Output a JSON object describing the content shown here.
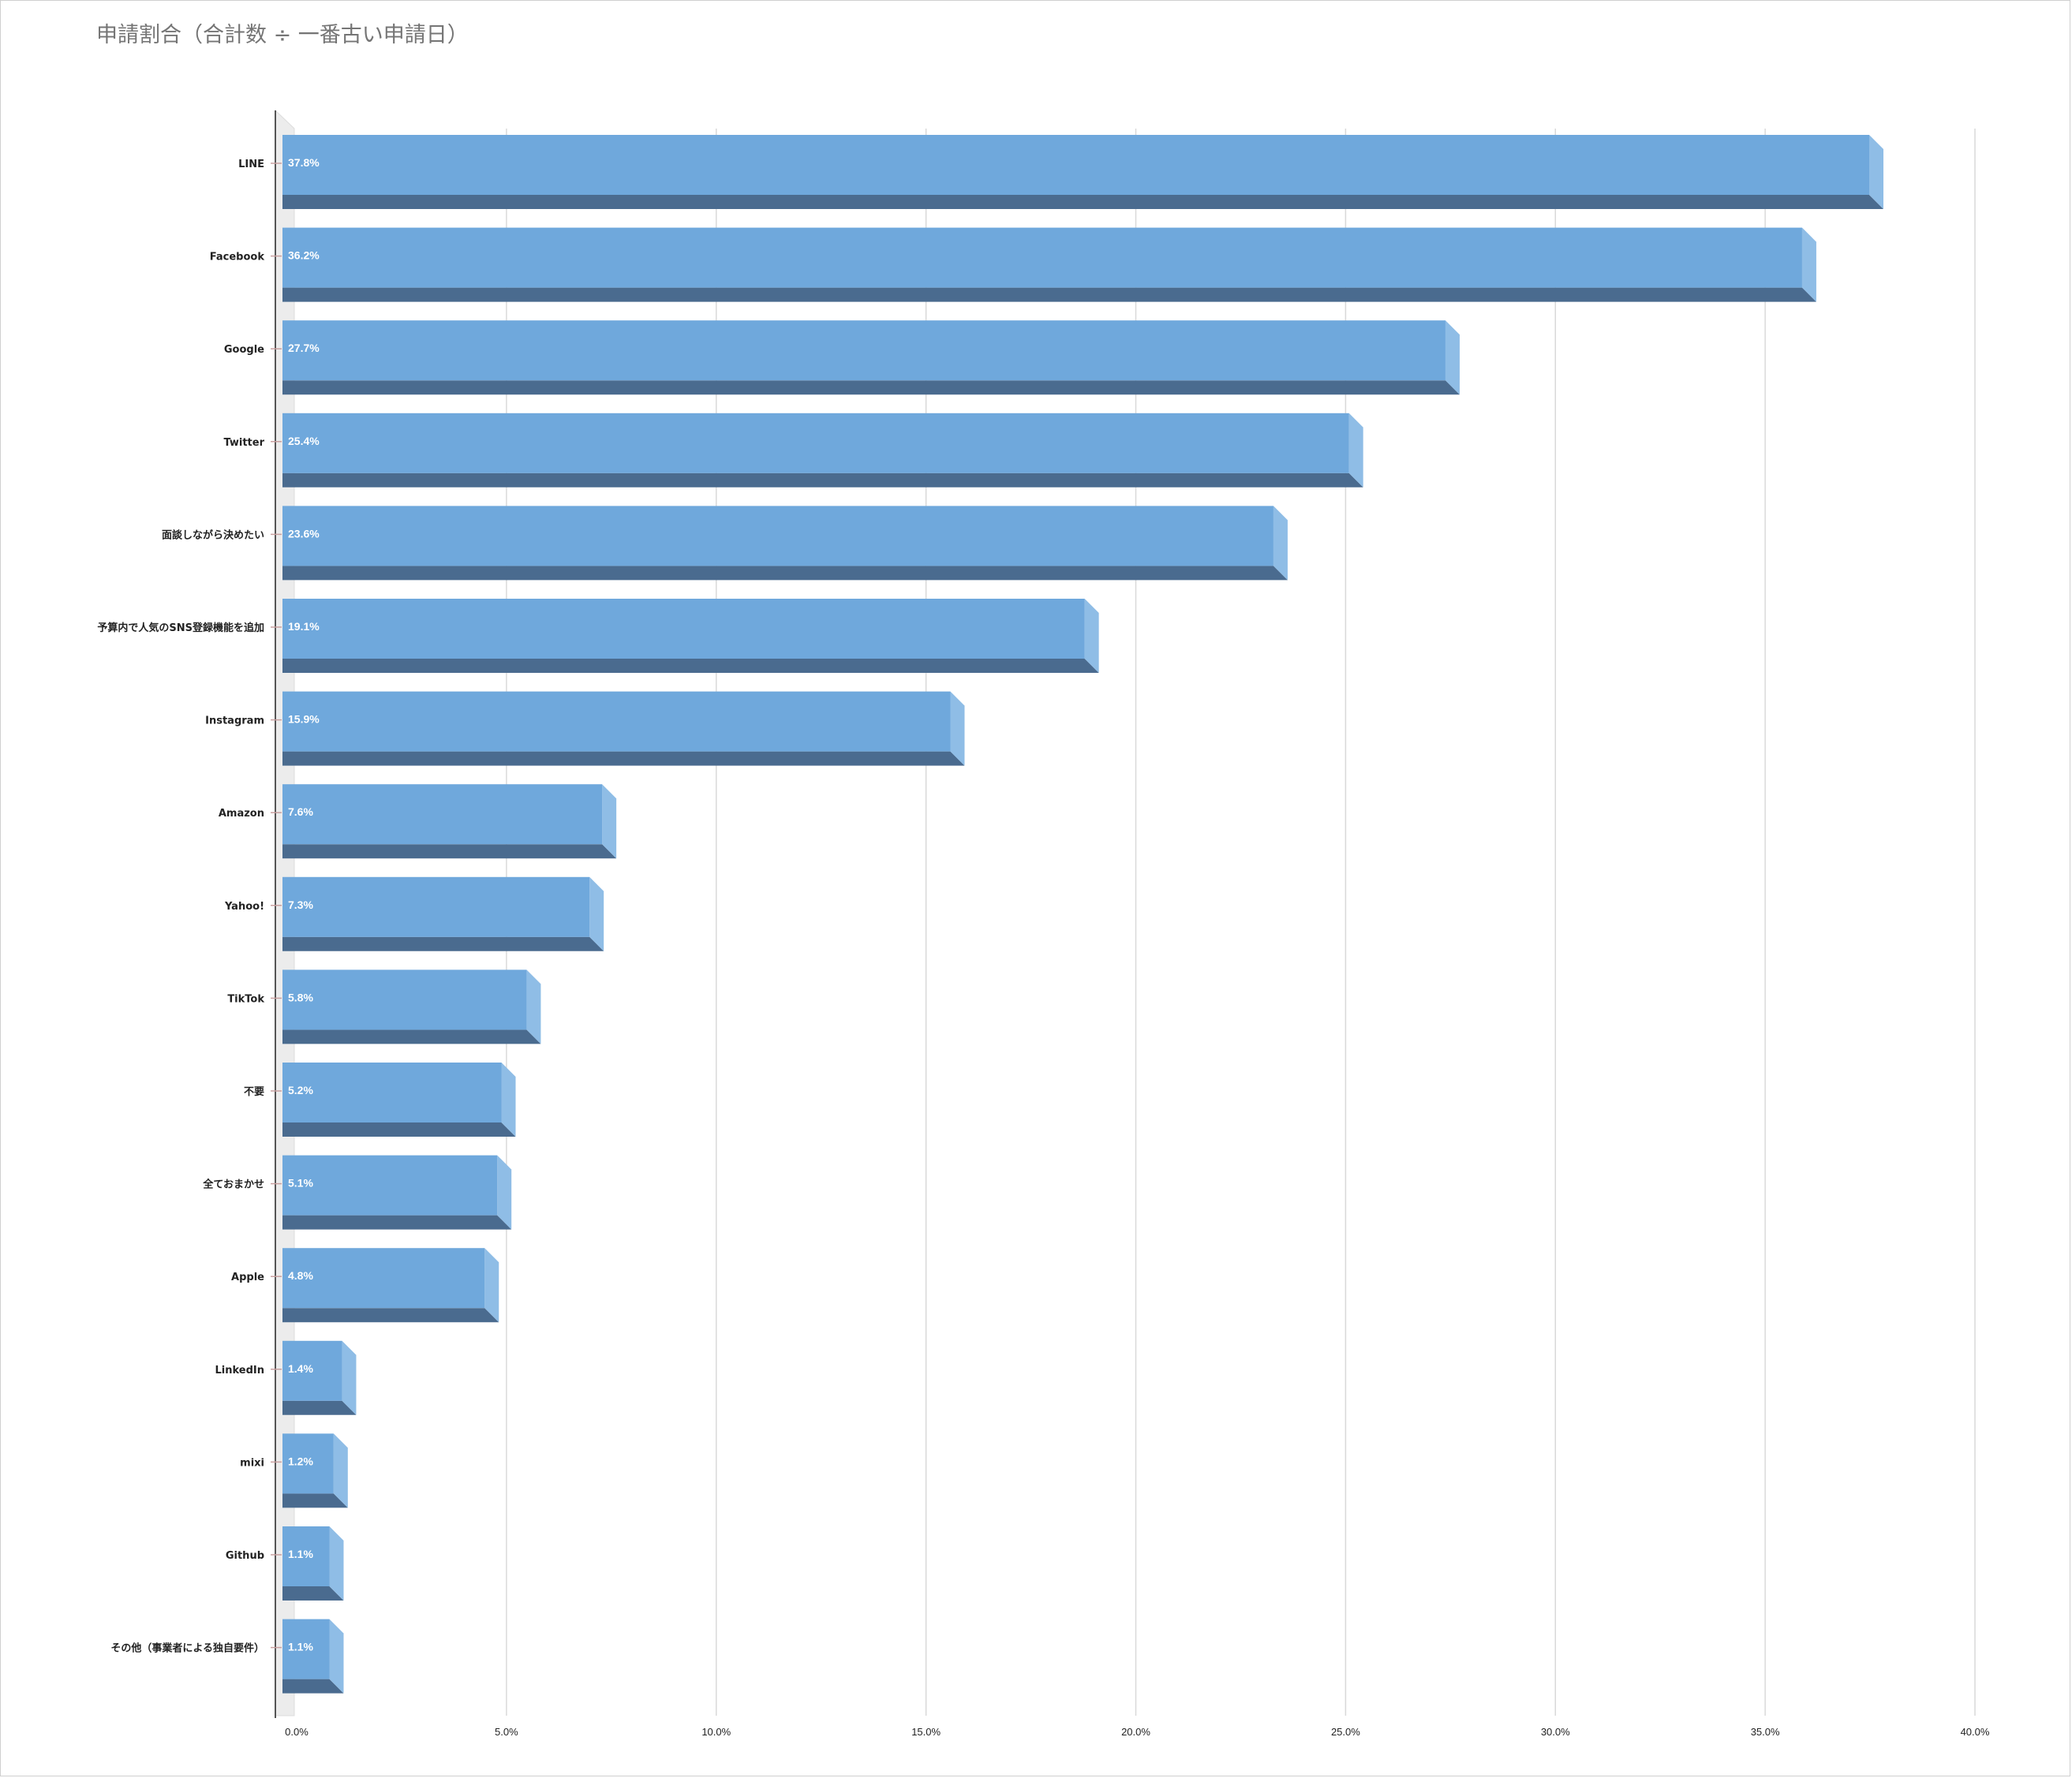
{
  "chart_data": {
    "type": "bar",
    "orientation": "horizontal",
    "style": "3d",
    "title": "申請割合（合計数 ÷ 一番古い申請日）",
    "xlabel": "",
    "ylabel": "",
    "xlim": [
      0,
      40
    ],
    "x_ticks": [
      "0.0%",
      "5.0%",
      "10.0%",
      "15.0%",
      "20.0%",
      "25.0%",
      "30.0%",
      "35.0%",
      "40.0%"
    ],
    "grid": true,
    "legend": "none",
    "bar_color": "#6fa8dc",
    "bar_shadow_color": "#4a6b8f",
    "categories": [
      "LINE",
      "Facebook",
      "Google",
      "Twitter",
      "面談しながら決めたい",
      "予算内で人気のSNS登録機能を追加",
      "Instagram",
      "Amazon",
      "Yahoo!",
      "TikTok",
      "不要",
      "全ておまかせ",
      "Apple",
      "LinkedIn",
      "mixi",
      "Github",
      "その他（事業者による独自要件）"
    ],
    "values": [
      37.8,
      36.2,
      27.7,
      25.4,
      23.6,
      19.1,
      15.9,
      7.6,
      7.3,
      5.8,
      5.2,
      5.1,
      4.8,
      1.4,
      1.2,
      1.1,
      1.1
    ],
    "data_labels": [
      "37.8%",
      "36.2%",
      "27.7%",
      "25.4%",
      "23.6%",
      "19.1%",
      "15.9%",
      "7.6%",
      "7.3%",
      "5.8%",
      "5.2%",
      "5.1%",
      "4.8%",
      "1.4%",
      "1.2%",
      "1.1%",
      "1.1%"
    ]
  }
}
